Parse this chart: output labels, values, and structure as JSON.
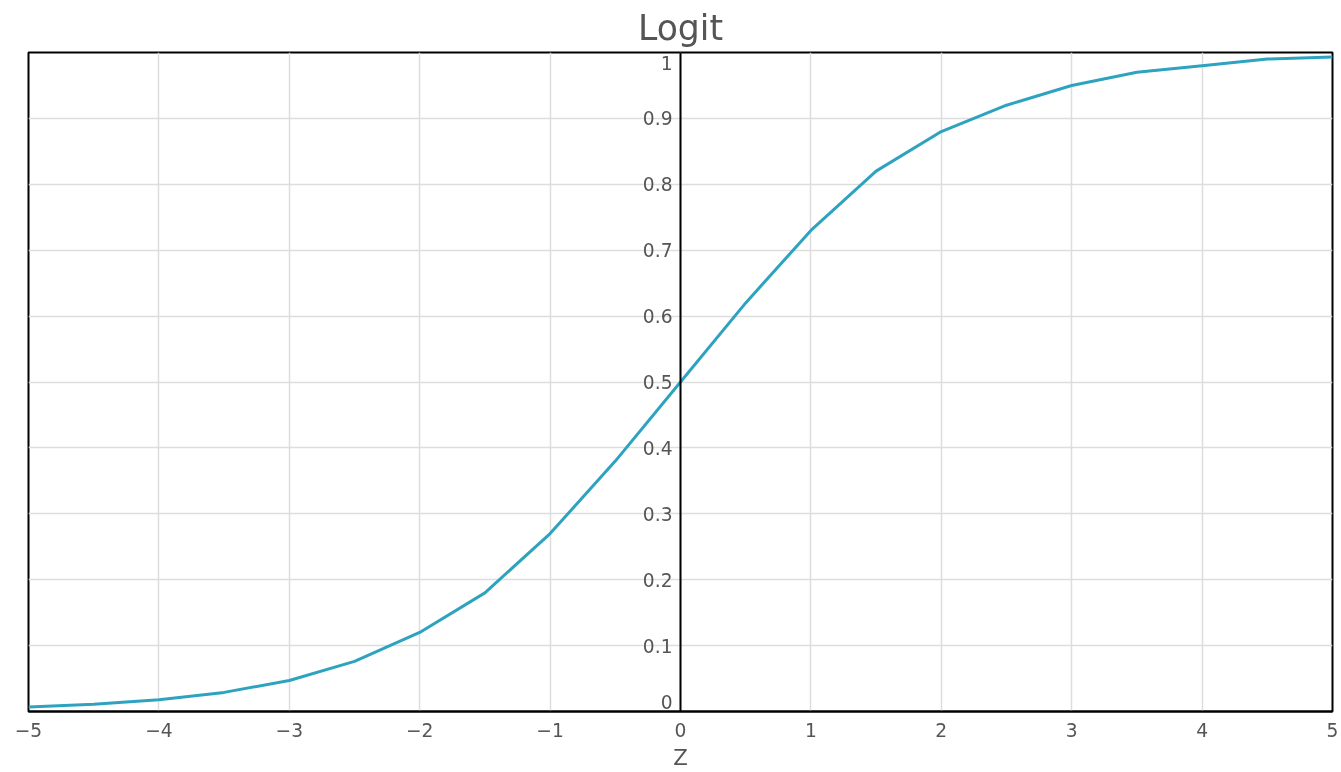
{
  "chart_data": {
    "type": "line",
    "title": "Logit",
    "xlabel": "Z",
    "x": [
      -5,
      -4.5,
      -4,
      -3.5,
      -3,
      -2.5,
      -2,
      -1.5,
      -1,
      -0.5,
      0,
      0.5,
      1,
      1.5,
      2,
      2.5,
      3,
      3.5,
      4,
      4.5,
      5
    ],
    "series": [
      {
        "color": "#2ea3c0",
        "values": [
          0.007,
          0.011,
          0.018,
          0.029,
          0.047,
          0.076,
          0.12,
          0.18,
          0.27,
          0.38,
          0.5,
          0.62,
          0.73,
          0.82,
          0.88,
          0.92,
          0.95,
          0.97,
          0.98,
          0.99,
          0.993
        ]
      }
    ],
    "xlim": [
      -5,
      5
    ],
    "ylim": [
      0,
      1
    ],
    "xticks": [
      {
        "value": -5,
        "label": "−5"
      },
      {
        "value": -4,
        "label": "−4"
      },
      {
        "value": -3,
        "label": "−3"
      },
      {
        "value": -2,
        "label": "−2"
      },
      {
        "value": -1,
        "label": "−1"
      },
      0,
      1,
      2,
      3,
      4,
      5
    ],
    "yticks": [
      0,
      0.1,
      0.2,
      0.3,
      0.4,
      0.5,
      0.6,
      0.7,
      0.8,
      0.9,
      1
    ],
    "grid": true,
    "marker": "none",
    "line_style": "solid"
  }
}
